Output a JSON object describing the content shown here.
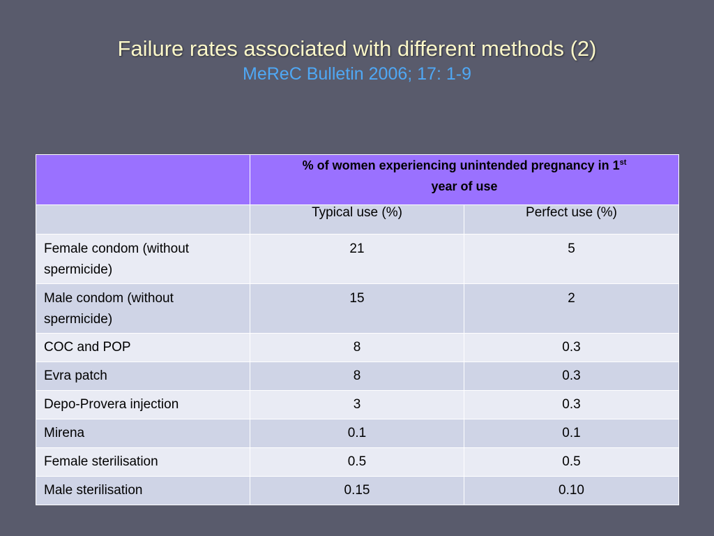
{
  "slide": {
    "title": "Failure rates associated with different methods (2)",
    "subtitle": "MeReC Bulletin 2006; 17: 1-9"
  },
  "table": {
    "header_main_prefix": "% of women experiencing unintended pregnancy in 1",
    "header_main_sup": "st",
    "header_main_suffix": "year of use",
    "col_typical": "Typical use (%)",
    "col_perfect": "Perfect use (%)",
    "rows": [
      {
        "method": "Female condom (without spermicide)",
        "typical": "21",
        "perfect": "5"
      },
      {
        "method": "Male condom (without spermicide)",
        "typical": "15",
        "perfect": "2"
      },
      {
        "method": "COC and POP",
        "typical": "8",
        "perfect": "0.3"
      },
      {
        "method": "Evra patch",
        "typical": "8",
        "perfect": "0.3"
      },
      {
        "method": "Depo-Provera injection",
        "typical": "3",
        "perfect": "0.3"
      },
      {
        "method": "Mirena",
        "typical": "0.1",
        "perfect": "0.1"
      },
      {
        "method": "Female sterilisation",
        "typical": "0.5",
        "perfect": "0.5"
      },
      {
        "method": "Male sterilisation",
        "typical": "0.15",
        "perfect": "0.10"
      }
    ]
  },
  "colors": {
    "background": "#595b6c",
    "title": "#fbf7c9",
    "subtitle": "#4fa8f5",
    "header": "#9a71ff",
    "row_light": "#e9ebf4",
    "row_dark": "#cfd4e6"
  }
}
